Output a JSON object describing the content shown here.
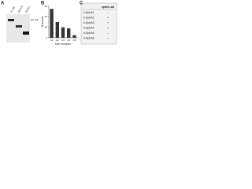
{
  "panel_labels": [
    "A",
    "B",
    "C"
  ],
  "blot": {
    "lanes": [
      "FL-βIII",
      "βIII-ΔN",
      "βIII-ΔC"
    ],
    "marker": "HA-βIII"
  },
  "chart_data": {
    "type": "bar",
    "ylabel": "% bound",
    "xlabel": "Eph receptor",
    "categories": [
      "A1",
      "A2",
      "A3",
      "A4",
      "A5"
    ],
    "values": [
      55,
      30,
      20,
      18,
      5
    ],
    "color": "#333333",
    "ylim": [
      0,
      60
    ],
    "yticks": [
      0,
      20,
      40,
      60
    ],
    "grid": false
  },
  "table": {
    "header": "ephrin-A5",
    "rows": [
      [
        "h-EphA1",
        "–"
      ],
      [
        "h-EphA2",
        "+"
      ],
      [
        "h-EphA3",
        "+"
      ],
      [
        "h-EphA4",
        "+"
      ],
      [
        "h-EphA5",
        "–"
      ],
      [
        "h-EphA6",
        "–"
      ]
    ]
  }
}
